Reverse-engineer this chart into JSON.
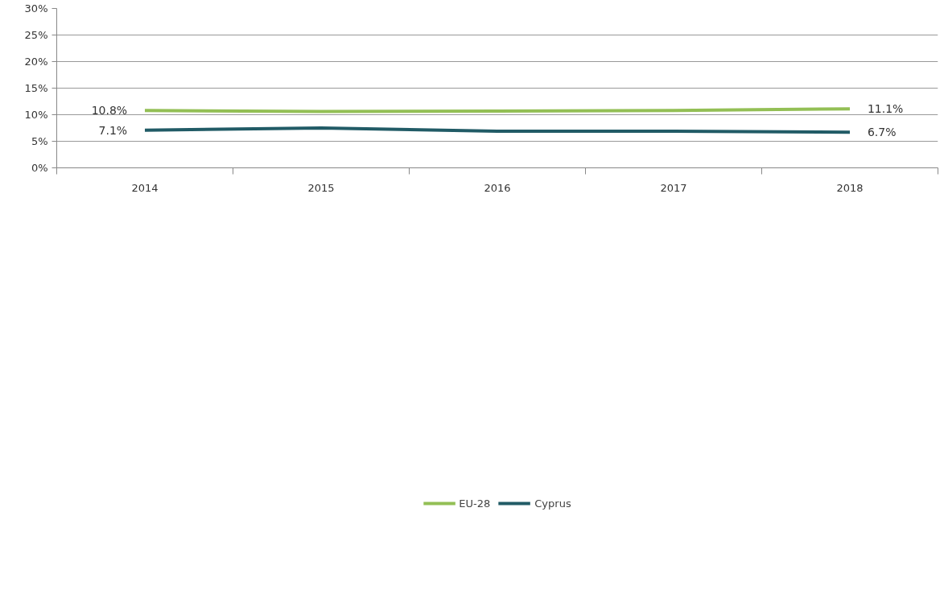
{
  "chart_data": {
    "type": "line",
    "categories": [
      "2014",
      "2015",
      "2016",
      "2017",
      "2018"
    ],
    "series": [
      {
        "name": "EU-28",
        "color": "#93bf55",
        "values": [
          10.8,
          10.6,
          10.7,
          10.8,
          11.1
        ],
        "value_labels": [
          "10.8%",
          null,
          null,
          null,
          "11.1%"
        ]
      },
      {
        "name": "Cyprus",
        "color": "#215b66",
        "values": [
          7.1,
          7.5,
          6.9,
          6.9,
          6.7
        ],
        "value_labels": [
          "7.1%",
          null,
          null,
          null,
          "6.7%"
        ]
      }
    ],
    "ylim": [
      0,
      30
    ],
    "yticks": [
      {
        "value": 0,
        "label": "0%"
      },
      {
        "value": 5,
        "label": "5%"
      },
      {
        "value": 10,
        "label": "10%"
      },
      {
        "value": 15,
        "label": "15%"
      },
      {
        "value": 20,
        "label": "20%"
      },
      {
        "value": 25,
        "label": "25%"
      },
      {
        "value": 30,
        "label": "30%"
      }
    ],
    "grid": "y",
    "legend": "bottom",
    "marker": "none",
    "line_style": "solid"
  }
}
